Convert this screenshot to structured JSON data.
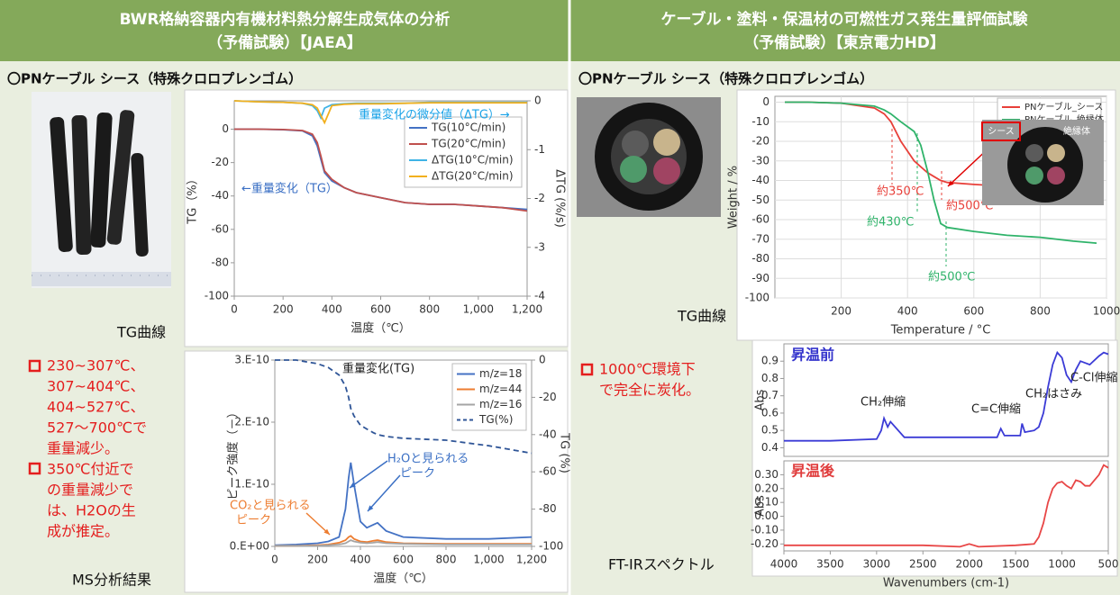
{
  "left_panel": {
    "title": "BWR格納容器内有機材料熱分解生成気体の分析",
    "subtitle": "（予備試験）【JAEA】",
    "sample": "〇PNケーブル シース（特殊クロロプレンゴム）",
    "tg_caption": "TG曲線",
    "ms_caption": "MS分析結果",
    "bullets": [
      [
        "230~307℃、",
        "307~404℃、",
        "404~527℃、",
        "527～700℃で",
        "重量減少。"
      ],
      [
        "350℃付近で",
        "の重量減少で",
        "は、H2Oの生",
        "成が推定。"
      ]
    ]
  },
  "right_panel": {
    "title": "ケーブル・塗料・保温材の可燃性ガス発生量評価試験",
    "subtitle": "（予備試験）【東京電力HD】",
    "sample": "〇PNケーブル シース（特殊クロロプレンゴム）",
    "tg_caption": "TG曲線",
    "ftir_caption": "FT-IRスペクトル",
    "bullets": [
      [
        "1000℃環境下",
        "で完全に炭化。"
      ]
    ],
    "inset_labels": [
      "シース",
      "絶縁体"
    ]
  },
  "chart_data": [
    {
      "type": "line",
      "xlabel": "温度（℃）",
      "ylabel": "TG（%）",
      "y2label": "ΔTG (%/s)",
      "x": [
        0,
        100,
        200,
        280,
        320,
        340,
        355,
        370,
        400,
        450,
        500,
        600,
        700,
        800,
        900,
        1000,
        1100,
        1200
      ],
      "xlim": [
        0,
        1200
      ],
      "xticks": [
        0,
        200,
        400,
        600,
        800,
        {
          "value": 1000,
          "label": "1,000"
        },
        {
          "value": 1200,
          "label": "1,200"
        }
      ],
      "ylim": [
        -100,
        17
      ],
      "yticks": [
        0,
        -20,
        -40,
        -60,
        -80,
        -100
      ],
      "y2lim": [
        -4,
        0
      ],
      "y2ticks": [
        0,
        -1,
        -2,
        -3,
        -4
      ],
      "legend": "upper right",
      "series": [
        {
          "name": "TG(10°C/min)",
          "color": "#4472c4",
          "values": [
            0,
            0,
            -0.3,
            -1,
            -4,
            -10,
            -18,
            -26,
            -31,
            -35,
            -38,
            -41,
            -44,
            -45,
            -45,
            -46,
            -47,
            -48
          ]
        },
        {
          "name": "TG(20°C/min)",
          "color": "#c0504d",
          "values": [
            0,
            0,
            -0.2,
            -0.8,
            -3,
            -8,
            -16,
            -25,
            -30,
            -35,
            -38,
            -41,
            -44,
            -45,
            -45,
            -46,
            -47,
            -49
          ]
        },
        {
          "name": "ΔTG(10°C/min)",
          "color": "#3fb3e6",
          "axis": "y2",
          "values": [
            0,
            -0.02,
            -0.03,
            -0.05,
            -0.1,
            -0.2,
            -0.35,
            -0.15,
            -0.08,
            -0.06,
            -0.05,
            -0.05,
            -0.05,
            -0.03,
            -0.03,
            -0.03,
            -0.03,
            -0.03
          ]
        },
        {
          "name": "ΔTG(20°C/min)",
          "color": "#f2b01e",
          "axis": "y2",
          "values": [
            0,
            -0.02,
            -0.03,
            -0.05,
            -0.08,
            -0.15,
            -0.3,
            -0.45,
            -0.1,
            -0.07,
            -0.06,
            -0.06,
            -0.05,
            -0.04,
            -0.04,
            -0.04,
            -0.04,
            -0.04
          ]
        }
      ],
      "annotations": [
        {
          "text": "重量変化の微分値（ΔTG）→",
          "color": "#1aa3e8"
        },
        {
          "text": "←重量変化（TG）",
          "color": "#3a6fc4"
        }
      ]
    },
    {
      "type": "line",
      "xlabel": "温度（℃）",
      "ylabel": "ピーク強度（－）",
      "y2label": "TG (%)",
      "x": [
        0,
        100,
        200,
        250,
        300,
        330,
        345,
        355,
        370,
        400,
        430,
        460,
        480,
        520,
        600,
        800,
        1000,
        1200
      ],
      "xlim": [
        0,
        1200
      ],
      "xticks": [
        0,
        200,
        400,
        600,
        800,
        {
          "value": 1000,
          "label": "1,000"
        },
        {
          "value": 1200,
          "label": "1,200"
        }
      ],
      "ylim": [
        0,
        3e-10
      ],
      "yticks": [
        {
          "value": 0,
          "label": "0.E+00"
        },
        {
          "value": 1e-10,
          "label": "1.E-10"
        },
        {
          "value": 2e-10,
          "label": "2.E-10"
        },
        {
          "value": 3e-10,
          "label": "3.E-10"
        }
      ],
      "y2lim": [
        -100,
        0
      ],
      "y2ticks": [
        0,
        -20,
        -40,
        -60,
        -80,
        -100
      ],
      "legend": "upper right",
      "series": [
        {
          "name": "m/z=18",
          "color": "#4472c4",
          "values": [
            2e-12,
            3e-12,
            5e-12,
            8e-12,
            1.5e-11,
            6e-11,
            1.1e-10,
            1.35e-10,
            1e-10,
            4e-11,
            3e-11,
            3.5e-11,
            3.8e-11,
            2.5e-11,
            1.5e-11,
            1.2e-11,
            1.2e-11,
            1.5e-11
          ]
        },
        {
          "name": "m/z=44",
          "color": "#ed7d31",
          "values": [
            1e-12,
            1e-12,
            2e-12,
            3e-12,
            6e-12,
            1e-11,
            1.5e-11,
            1.7e-11,
            1.2e-11,
            8e-12,
            7e-12,
            9e-12,
            1e-11,
            7e-12,
            5e-12,
            4e-12,
            4e-12,
            4e-12
          ]
        },
        {
          "name": "m/z=16",
          "color": "#a5a5a5",
          "values": [
            1e-12,
            1e-12,
            1e-12,
            2e-12,
            3e-12,
            5e-12,
            8e-12,
            1e-11,
            8e-12,
            6e-12,
            5e-12,
            6e-12,
            7e-12,
            5e-12,
            4e-12,
            3e-12,
            3e-12,
            3e-12
          ]
        },
        {
          "name": "TG(%)",
          "color": "#2f5597",
          "axis": "y2",
          "dash": true,
          "values": [
            0,
            0,
            -2,
            -4,
            -8,
            -14,
            -20,
            -26,
            -30,
            -35,
            -37,
            -39,
            -40,
            -41,
            -42,
            -43,
            -46,
            -50
          ]
        }
      ],
      "annotations": [
        {
          "text": "重量変化(TG)",
          "color": "#222"
        },
        {
          "text": "H₂Oと見られる",
          "color": "#3a6fc4"
        },
        {
          "text": "ピーク",
          "color": "#3a6fc4"
        },
        {
          "text": "CO₂と見られる",
          "color": "#ed7d31"
        },
        {
          "text": "ピーク",
          "color": "#ed7d31"
        }
      ]
    },
    {
      "type": "line",
      "xlabel": "Temperature / °C",
      "ylabel": "Weight / %",
      "x": [
        30,
        100,
        200,
        300,
        330,
        350,
        380,
        420,
        440,
        460,
        480,
        500,
        520,
        600,
        700,
        800,
        900,
        970
      ],
      "xlim": [
        0,
        1000
      ],
      "xticks": [
        200,
        400,
        600,
        800,
        1000
      ],
      "ylim": [
        -100,
        3
      ],
      "yticks": [
        0,
        -10,
        -20,
        -30,
        -40,
        -50,
        -60,
        -70,
        -80,
        -90,
        -100
      ],
      "grid": true,
      "legend": "upper right",
      "series": [
        {
          "name": "PNケーブル_シース",
          "color": "#e8403a",
          "values": [
            0,
            0,
            -0.5,
            -3,
            -6,
            -10,
            -20,
            -30,
            -33,
            -36,
            -38,
            -40,
            -41,
            -42,
            -43,
            -44,
            -45,
            -46
          ]
        },
        {
          "name": "PNケーブル_絶縁体",
          "color": "#2fb36a",
          "values": [
            0,
            0,
            -0.5,
            -2,
            -4,
            -6,
            -10,
            -15,
            -22,
            -35,
            -50,
            -62,
            -64,
            -66,
            -68,
            -69,
            -71,
            -72
          ]
        }
      ],
      "annotations": [
        {
          "text": "約350℃",
          "color": "#e8403a"
        },
        {
          "text": "約430℃",
          "color": "#2fb36a"
        },
        {
          "text": "約500℃",
          "color": "#e8403a"
        },
        {
          "text": "約500℃",
          "color": "#2fb36a"
        }
      ]
    },
    {
      "type": "line",
      "title": "昇温前",
      "title_color": "#3333cc",
      "ylabel": "Abs",
      "x": [
        4000,
        3500,
        3000,
        2950,
        2920,
        2880,
        2850,
        2700,
        2000,
        1700,
        1660,
        1620,
        1450,
        1430,
        1400,
        1300,
        1250,
        1200,
        1150,
        1100,
        1050,
        1000,
        950,
        900,
        850,
        800,
        700,
        600,
        550,
        500
      ],
      "xlim": [
        4000,
        500
      ],
      "ylim": [
        0.35,
        1.0
      ],
      "yticks": [
        0.4,
        0.5,
        0.6,
        0.7,
        0.8,
        0.9
      ],
      "series": [
        {
          "color": "#3b3bd6",
          "values": [
            0.44,
            0.44,
            0.45,
            0.5,
            0.57,
            0.52,
            0.55,
            0.46,
            0.46,
            0.46,
            0.51,
            0.47,
            0.47,
            0.54,
            0.49,
            0.5,
            0.52,
            0.6,
            0.75,
            0.88,
            0.95,
            0.92,
            0.82,
            0.78,
            0.85,
            0.9,
            0.88,
            0.93,
            0.95,
            0.94
          ]
        }
      ],
      "annotations": [
        {
          "text": "CH₂伸縮",
          "color": "#222"
        },
        {
          "text": "C=C伸縮",
          "color": "#222"
        },
        {
          "text": "CH₂はさみ",
          "color": "#222"
        },
        {
          "text": "C-Cl伸縮",
          "color": "#222"
        }
      ]
    },
    {
      "type": "line",
      "title": "昇温後",
      "title_color": "#e03c3c",
      "ylabel": "Abs",
      "xlabel": "Wavenumbers (cm-1)",
      "x": [
        4000,
        3500,
        3000,
        2500,
        2100,
        2000,
        1900,
        1500,
        1300,
        1250,
        1200,
        1150,
        1100,
        1050,
        1000,
        950,
        900,
        850,
        800,
        750,
        700,
        600,
        550,
        500
      ],
      "xlim": [
        4000,
        500
      ],
      "xticks": [
        4000,
        3500,
        3000,
        2500,
        2000,
        1500,
        1000,
        500
      ],
      "ylim": [
        -0.25,
        0.4
      ],
      "yticks": [
        {
          "value": -0.2,
          "label": "-0.20"
        },
        {
          "value": -0.1,
          "label": "-0.10"
        },
        {
          "value": 0,
          "label": "0.00"
        },
        {
          "value": 0.1,
          "label": "0.10"
        },
        {
          "value": 0.2,
          "label": "0.20"
        },
        {
          "value": 0.3,
          "label": "0.30"
        }
      ],
      "series": [
        {
          "color": "#e84646",
          "values": [
            -0.21,
            -0.21,
            -0.21,
            -0.21,
            -0.22,
            -0.2,
            -0.22,
            -0.21,
            -0.2,
            -0.15,
            -0.05,
            0.1,
            0.2,
            0.24,
            0.25,
            0.22,
            0.2,
            0.26,
            0.25,
            0.22,
            0.22,
            0.3,
            0.37,
            0.35
          ]
        }
      ]
    }
  ]
}
